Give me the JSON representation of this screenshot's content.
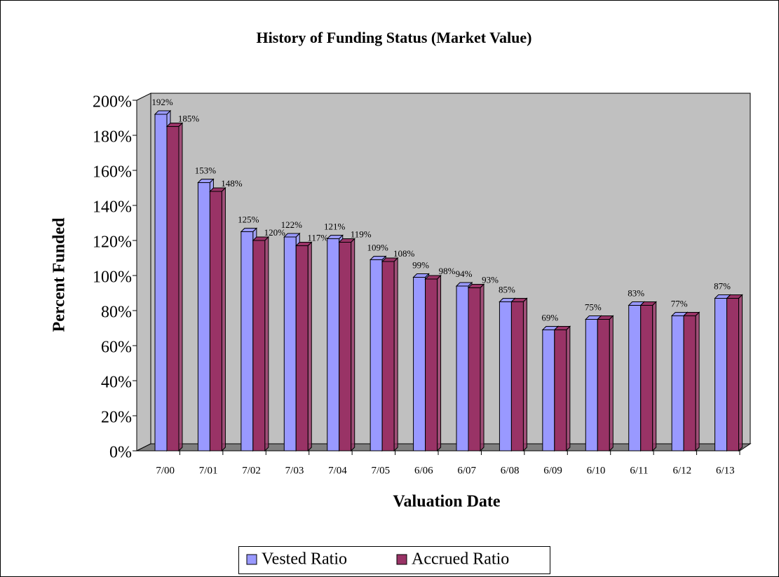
{
  "chart_data": {
    "type": "bar",
    "title": "History of Funding Status (Market Value)",
    "x_label": "Valuation Date",
    "y_label": "Percent Funded",
    "categories": [
      "7/00",
      "7/01",
      "7/02",
      "7/03",
      "7/04",
      "7/05",
      "6/06",
      "6/07",
      "6/08",
      "6/09",
      "6/10",
      "6/11",
      "6/12",
      "6/13"
    ],
    "series": [
      {
        "name": "Vested Ratio",
        "color": "#9999ff",
        "values": [
          192,
          153,
          125,
          122,
          121,
          109,
          99,
          94,
          85,
          69,
          75,
          83,
          77,
          87
        ],
        "value_labels": [
          "192%",
          "153%",
          "125%",
          "122%",
          "121%",
          "109%",
          "99%",
          "94%",
          "85%",
          "69%",
          "75%",
          "83%",
          "77%",
          "87%"
        ]
      },
      {
        "name": "Accrued Ratio",
        "color": "#993366",
        "values": [
          185,
          148,
          120,
          117,
          119,
          108,
          98,
          93,
          85,
          69,
          75,
          83,
          77,
          87
        ],
        "value_labels": [
          "185%",
          "148%",
          "120%",
          "117%",
          "119%",
          "108%",
          "98%",
          "93%",
          null,
          null,
          null,
          null,
          null,
          null
        ]
      }
    ],
    "ylim": [
      0,
      200
    ],
    "yticks": [
      {
        "value": 0,
        "label": "0%"
      },
      {
        "value": 20,
        "label": "20%"
      },
      {
        "value": 40,
        "label": "40%"
      },
      {
        "value": 60,
        "label": "60%"
      },
      {
        "value": 80,
        "label": "80%"
      },
      {
        "value": 100,
        "label": "100%"
      },
      {
        "value": 120,
        "label": "120%"
      },
      {
        "value": 140,
        "label": "140%"
      },
      {
        "value": 160,
        "label": "160%"
      },
      {
        "value": 180,
        "label": "180%"
      },
      {
        "value": 200,
        "label": "200%"
      }
    ],
    "legend": "bottom"
  }
}
